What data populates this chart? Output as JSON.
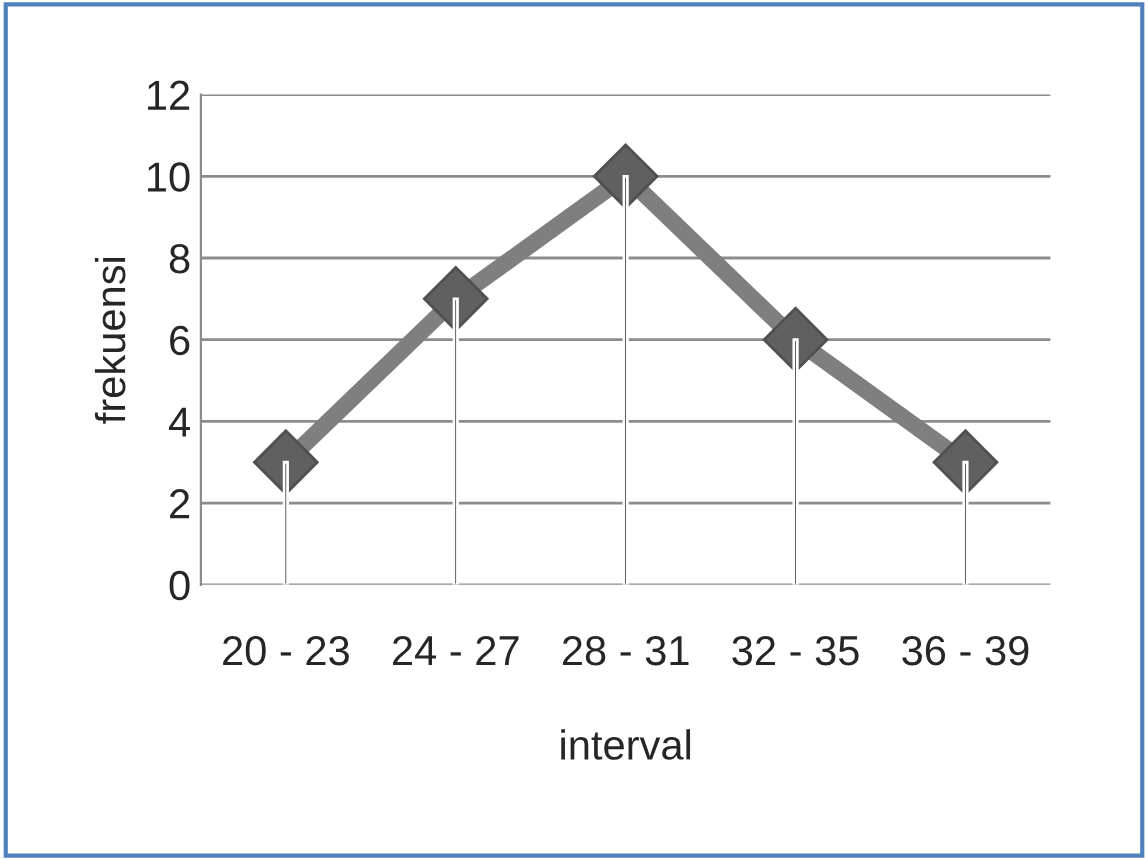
{
  "chart_data": {
    "type": "line",
    "xlabel": "interval",
    "ylabel": "frekuensi",
    "categories": [
      "20 - 23",
      "24 - 27",
      "28 - 31",
      "32 - 35",
      "36 - 39"
    ],
    "series": [
      {
        "type": "bar",
        "color": "#000000",
        "values": [
          3,
          7,
          10,
          6,
          3
        ]
      },
      {
        "color": "#7f7f7f",
        "values": [
          3,
          7,
          10,
          6,
          3
        ],
        "marker": "diamond",
        "line_style": "solid"
      }
    ],
    "ylim": [
      0,
      12
    ],
    "yticks": [
      0,
      2,
      4,
      6,
      8,
      10,
      12
    ],
    "grid": "y",
    "legend": false
  }
}
